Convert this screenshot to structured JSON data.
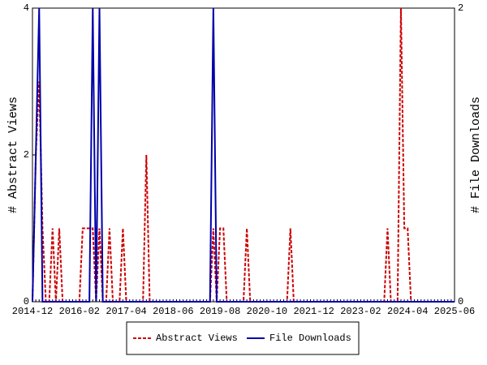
{
  "chart_data": {
    "type": "line",
    "y_label": "# Abstract Views",
    "y2_label": "# File Downloads",
    "categories": [
      "2014-12",
      null,
      null,
      null,
      null,
      null,
      null,
      null,
      null,
      null,
      null,
      null,
      null,
      null,
      "2016-02",
      null,
      null,
      null,
      null,
      null,
      null,
      null,
      null,
      null,
      null,
      null,
      null,
      null,
      "2017-04",
      null,
      null,
      null,
      null,
      null,
      null,
      null,
      null,
      null,
      null,
      null,
      null,
      null,
      "2018-06",
      null,
      null,
      null,
      null,
      null,
      null,
      null,
      null,
      null,
      null,
      null,
      null,
      null,
      "2019-08",
      null,
      null,
      null,
      null,
      null,
      null,
      null,
      null,
      null,
      null,
      null,
      null,
      null,
      "2020-10",
      null,
      null,
      null,
      null,
      null,
      null,
      null,
      null,
      null,
      null,
      null,
      null,
      null,
      "2021-12",
      null,
      null,
      null,
      null,
      null,
      null,
      null,
      null,
      null,
      null,
      null,
      null,
      null,
      "2023-02",
      null,
      null,
      null,
      null,
      null,
      null,
      null,
      null,
      null,
      null,
      null,
      null,
      null,
      "2024-04",
      null,
      null,
      null,
      null,
      null,
      null,
      null,
      null,
      null,
      null,
      null,
      null,
      null,
      "2025-06"
    ],
    "series": [
      {
        "name": "Abstract Views",
        "color": "#cc0000",
        "line_style": "dashed",
        "axis": "y",
        "values": [
          0,
          2,
          3,
          1,
          0,
          0,
          1,
          0,
          1,
          0,
          0,
          0,
          0,
          0,
          0,
          1,
          1,
          1,
          1,
          0,
          1,
          0,
          0,
          1,
          0,
          0,
          0,
          1,
          0,
          0,
          0,
          0,
          0,
          0,
          2,
          0,
          0,
          0,
          0,
          0,
          0,
          0,
          0,
          0,
          0,
          0,
          0,
          0,
          0,
          0,
          0,
          0,
          0,
          0,
          1,
          0,
          1,
          1,
          0,
          0,
          0,
          0,
          0,
          0,
          1,
          0,
          0,
          0,
          0,
          0,
          0,
          0,
          0,
          0,
          0,
          0,
          0,
          1,
          0,
          0,
          0,
          0,
          0,
          0,
          0,
          0,
          0,
          0,
          0,
          0,
          0,
          0,
          0,
          0,
          0,
          0,
          0,
          0,
          0,
          0,
          0,
          0,
          0,
          0,
          0,
          0,
          1,
          0,
          0,
          0,
          4,
          1,
          1,
          0,
          0,
          0,
          0,
          0,
          0,
          0,
          0,
          0,
          0,
          0,
          0,
          0,
          0
        ]
      },
      {
        "name": "File Downloads",
        "color": "#0000aa",
        "line_style": "solid",
        "axis": "y2",
        "values": [
          0,
          1,
          2,
          0,
          0,
          0,
          0,
          0,
          0,
          0,
          0,
          0,
          0,
          0,
          0,
          0,
          0,
          0,
          2,
          0,
          2,
          0,
          0,
          0,
          0,
          0,
          0,
          0,
          0,
          0,
          0,
          0,
          0,
          0,
          0,
          0,
          0,
          0,
          0,
          0,
          0,
          0,
          0,
          0,
          0,
          0,
          0,
          0,
          0,
          0,
          0,
          0,
          0,
          0,
          2,
          0,
          0,
          0,
          0,
          0,
          0,
          0,
          0,
          0,
          0,
          0,
          0,
          0,
          0,
          0,
          0,
          0,
          0,
          0,
          0,
          0,
          0,
          0,
          0,
          0,
          0,
          0,
          0,
          0,
          0,
          0,
          0,
          0,
          0,
          0,
          0,
          0,
          0,
          0,
          0,
          0,
          0,
          0,
          0,
          0,
          0,
          0,
          0,
          0,
          0,
          0,
          0,
          0,
          0,
          0,
          0,
          0,
          0,
          0,
          0,
          0,
          0,
          0,
          0,
          0,
          0,
          0,
          0,
          0,
          0,
          0,
          0
        ]
      }
    ],
    "ylim": [
      0,
      4
    ],
    "yticks": [
      0,
      2,
      4
    ],
    "y2lim": [
      0,
      2
    ],
    "y2ticks": [
      0,
      2
    ],
    "legend": "bottom"
  }
}
